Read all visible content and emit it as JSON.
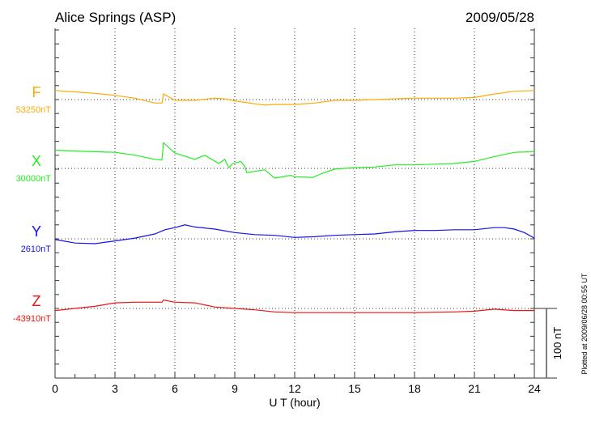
{
  "chart_data": {
    "type": "line",
    "title": "Alice Springs (ASP)",
    "date": "2009/05/28",
    "xlabel": "U T (hour)",
    "xlim": [
      0,
      24
    ],
    "xticks": [
      "0",
      "3",
      "6",
      "9",
      "12",
      "15",
      "18",
      "21",
      "24"
    ],
    "x_minor_step": 1,
    "grid": "dotted, every 3 h and at each baseline",
    "scale_bar_label": "100 nT",
    "scale_bar_nT": 100,
    "footer": "Plotted at 2009/06/28 00:55 UT",
    "series": [
      {
        "name": "F",
        "baseline_label": "53250nT",
        "color": "#ffaa00",
        "x": [
          0,
          1,
          2,
          3,
          4,
          5,
          5.35,
          5.43,
          6,
          7,
          8,
          8.5,
          9,
          9.5,
          10,
          10.5,
          11,
          12,
          13,
          14,
          15,
          16,
          17,
          18,
          19,
          20,
          21,
          22,
          23,
          24
        ],
        "y": [
          13,
          11,
          9,
          6,
          2,
          -5,
          -5,
          8,
          -1,
          -1,
          2,
          1,
          -2,
          -4,
          -6,
          -8,
          -7,
          -7,
          -5,
          -1,
          -1,
          0,
          1,
          2,
          2,
          2,
          3,
          8,
          12,
          13
        ]
      },
      {
        "name": "X",
        "baseline_label": "30000nT",
        "color": "#22ee22",
        "x": [
          0,
          1,
          2,
          3,
          4,
          5,
          5.35,
          5.43,
          6,
          7,
          7.5,
          8.2,
          8.5,
          8.7,
          8.9,
          9.3,
          9.5,
          9.6,
          10.5,
          11,
          11.8,
          12,
          12.9,
          13.4,
          14,
          15,
          16,
          17,
          18,
          19,
          20,
          21,
          22,
          23,
          24
        ],
        "y": [
          26,
          25,
          24,
          23,
          19,
          13,
          12,
          37,
          22,
          13,
          19,
          7,
          13,
          1,
          7,
          10,
          3,
          -6,
          -2,
          -14,
          -10,
          -12,
          -13,
          -7,
          -1,
          1,
          2,
          5,
          5,
          6,
          7,
          10,
          17,
          23,
          24
        ]
      },
      {
        "name": "Y",
        "baseline_label": "2610nT",
        "color": "#1111ee",
        "x": [
          0,
          1,
          2,
          3,
          4,
          5,
          5.5,
          6,
          6.5,
          7,
          8,
          9,
          10,
          11,
          12,
          13,
          14,
          15,
          16,
          17,
          18,
          19,
          20,
          21,
          22,
          22.5,
          23,
          23.5,
          24
        ],
        "y": [
          -1,
          -6,
          -7,
          -3,
          1,
          7,
          13,
          16,
          20,
          17,
          14,
          9,
          6,
          5,
          2,
          3,
          5,
          6,
          7,
          10,
          12,
          12,
          13,
          13,
          16,
          16,
          14,
          9,
          1
        ]
      },
      {
        "name": "Z",
        "baseline_label": "-43910nT",
        "color": "#ee1111",
        "x": [
          0,
          1,
          2,
          3,
          4,
          5,
          5.35,
          5.43,
          6,
          7,
          8,
          9,
          10,
          11,
          12,
          15,
          18,
          20,
          21,
          22,
          23,
          24
        ],
        "y": [
          -3,
          0,
          3,
          8,
          9,
          9,
          9,
          12,
          9,
          8,
          2,
          0,
          -2,
          -5,
          -6,
          -6,
          -6,
          -5,
          -4,
          -1,
          -3,
          -3
        ]
      }
    ]
  }
}
